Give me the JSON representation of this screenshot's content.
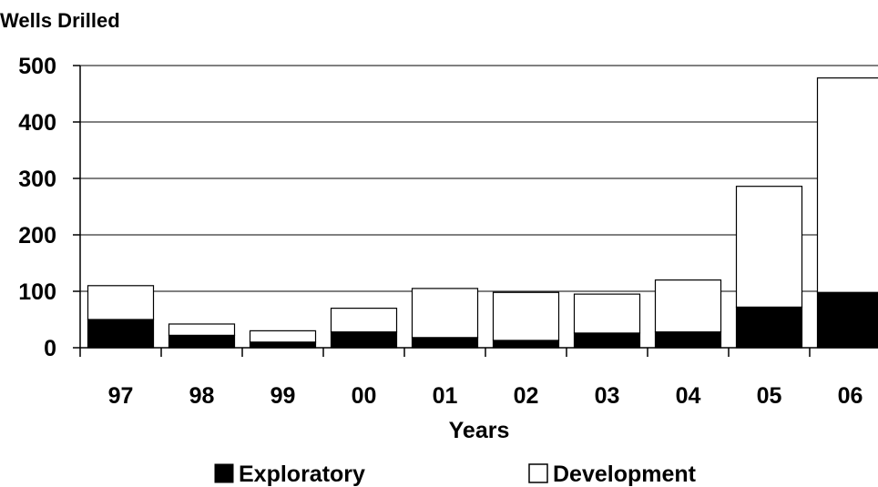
{
  "chart_data": {
    "type": "bar",
    "stacked": true,
    "title": "",
    "ylabel": "Wells Drilled",
    "xlabel": "Years",
    "categories": [
      "97",
      "98",
      "99",
      "00",
      "01",
      "02",
      "03",
      "04",
      "05",
      "06"
    ],
    "ylim": [
      0,
      500
    ],
    "yticks": [
      0,
      100,
      200,
      300,
      400,
      500
    ],
    "grid": true,
    "legend_position": "bottom",
    "series": [
      {
        "name": "Exploratory",
        "color": "#000000",
        "values": [
          50,
          22,
          10,
          28,
          18,
          13,
          26,
          28,
          72,
          98
        ]
      },
      {
        "name": "Development",
        "color": "#ffffff",
        "values": [
          60,
          20,
          20,
          42,
          87,
          85,
          69,
          92,
          214,
          380
        ]
      }
    ]
  }
}
